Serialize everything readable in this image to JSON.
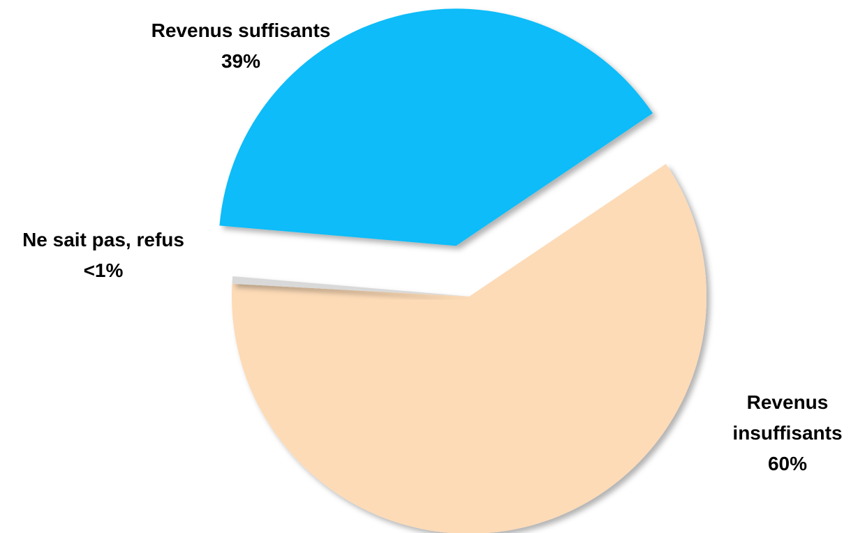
{
  "chart_data": {
    "type": "pie",
    "categories": [
      "Revenus insuffisants",
      "Ne sait pas, refus",
      "Revenus suffisants"
    ],
    "values": [
      60,
      0.5,
      39
    ],
    "value_labels": [
      "60%",
      "<1%",
      "39%"
    ],
    "colors": [
      "#fddbb7",
      "#d9d9d9",
      "#0bbcf8"
    ]
  }
}
